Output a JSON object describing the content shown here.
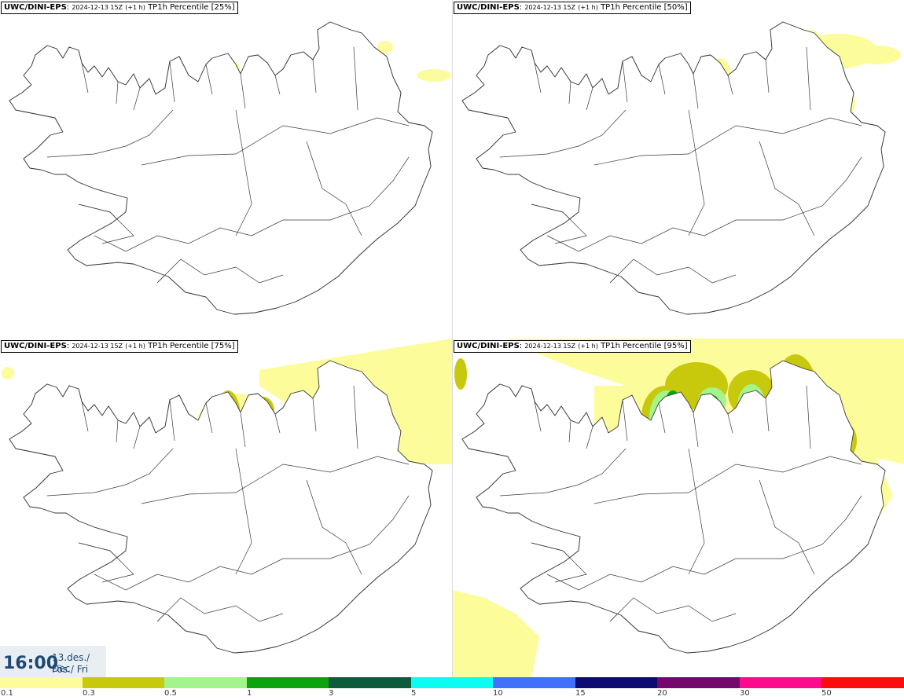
{
  "panels": [
    {
      "model": "UWC/DINI-EPS",
      "run": "2024-12-13 15Z",
      "lead": "(+1 h)",
      "field": "TP1h Percentile",
      "pct": "[25%]"
    },
    {
      "model": "UWC/DINI-EPS",
      "run": "2024-12-13 15Z",
      "lead": "(+1 h)",
      "field": "TP1h Percentile",
      "pct": "[50%]"
    },
    {
      "model": "UWC/DINI-EPS",
      "run": "2024-12-13 15Z",
      "lead": "(+1 h)",
      "field": "TP1h Percentile",
      "pct": "[75%]"
    },
    {
      "model": "UWC/DINI-EPS",
      "run": "2024-12-13 15Z",
      "lead": "(+1 h)",
      "field": "TP1h Percentile",
      "pct": "[95%]"
    }
  ],
  "valid": {
    "time": "16:00",
    "date_line1": "13.des./ Dec",
    "date_line2": "Fös./ Fri"
  },
  "colorbar": {
    "colors": [
      "#fcfc9a",
      "#c8c80c",
      "#a4f48c",
      "#0ca40c",
      "#0c5c3c",
      "#0cfcf4",
      "#4070fc",
      "#0c0c74",
      "#74086c",
      "#fc0c8c",
      "#fc0c0c"
    ],
    "labels": [
      "0.1",
      "0.3",
      "0.5",
      "1",
      "3",
      "5",
      "10",
      "15",
      "20",
      "30",
      "50"
    ]
  }
}
